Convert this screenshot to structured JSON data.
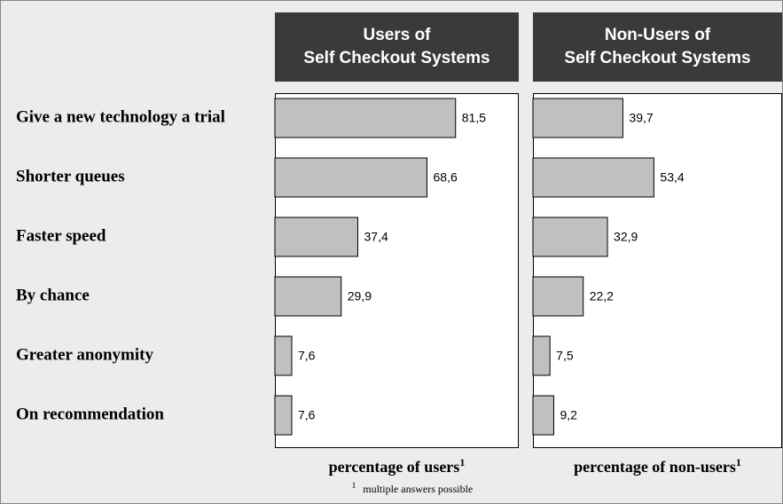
{
  "chart_data": [
    {
      "type": "bar",
      "orientation": "horizontal",
      "title": [
        "Users of",
        "Self Checkout Systems"
      ],
      "categories": [
        "Give a new technology a trial",
        "Shorter queues",
        "Faster speed",
        "By chance",
        "Greater anonymity",
        "On recommendation"
      ],
      "values": [
        81.5,
        68.6,
        37.4,
        29.9,
        7.6,
        7.6
      ],
      "value_labels": [
        "81,5",
        "68,6",
        "37,4",
        "29,9",
        "7,6",
        "7,6"
      ],
      "color": "#c0c0c0",
      "xlim": [
        0,
        110
      ],
      "xlabel": "percentage of users"
    },
    {
      "type": "bar",
      "orientation": "horizontal",
      "title": [
        "Non-Users of",
        "Self Checkout Systems"
      ],
      "values": [
        39.7,
        53.4,
        32.9,
        22.2,
        7.5,
        9.2
      ],
      "value_labels": [
        "39,7",
        "53,4",
        "32,9",
        "22,2",
        "7,5",
        "9,2"
      ],
      "color": "#c0c0c0",
      "xlim": [
        0,
        110
      ],
      "xlabel": "percentage of non-users"
    }
  ],
  "footnote": {
    "marker": "1",
    "text": "multiple answers possible"
  }
}
